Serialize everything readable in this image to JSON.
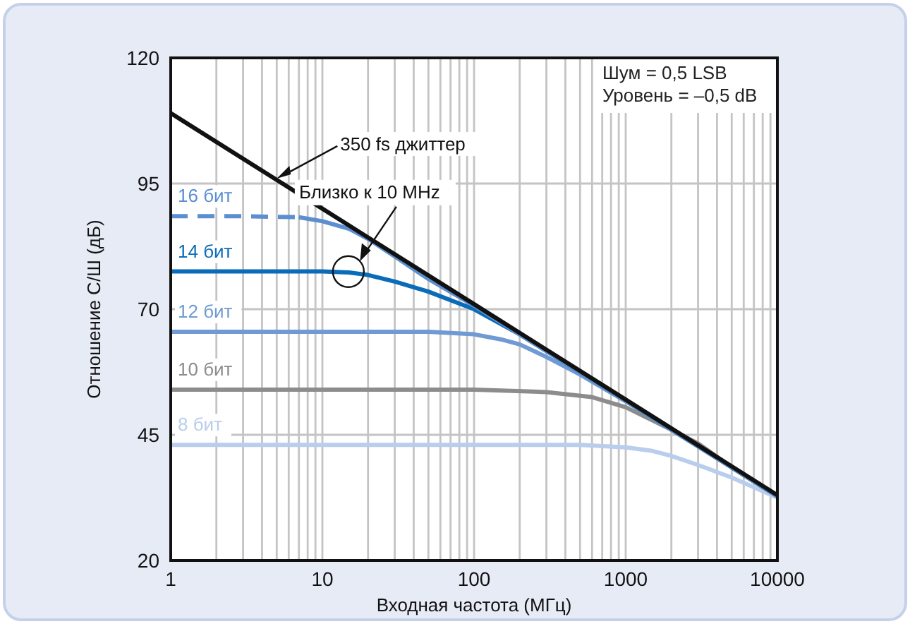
{
  "chart_data": {
    "type": "line",
    "xlabel": "Входная частота (МГц)",
    "ylabel": "Отношение С/Ш (дБ)",
    "log": "x",
    "grid": true,
    "line_style": "solid",
    "marker": "none",
    "xlim": [
      1,
      10000
    ],
    "ylim": [
      20,
      120
    ],
    "xticks": [
      1,
      {
        "value": 2,
        "label": null
      },
      {
        "value": 3,
        "label": null
      },
      {
        "value": 4,
        "label": null
      },
      {
        "value": 5,
        "label": null
      },
      {
        "value": 6,
        "label": null
      },
      {
        "value": 7,
        "label": null
      },
      {
        "value": 8,
        "label": null
      },
      {
        "value": 9,
        "label": null
      },
      10,
      {
        "value": 20,
        "label": null
      },
      {
        "value": 30,
        "label": null
      },
      {
        "value": 40,
        "label": null
      },
      {
        "value": 50,
        "label": null
      },
      {
        "value": 60,
        "label": null
      },
      {
        "value": 70,
        "label": null
      },
      {
        "value": 80,
        "label": null
      },
      {
        "value": 90,
        "label": null
      },
      100,
      {
        "value": 200,
        "label": null
      },
      {
        "value": 300,
        "label": null
      },
      {
        "value": 400,
        "label": null
      },
      {
        "value": 500,
        "label": null
      },
      {
        "value": 600,
        "label": null
      },
      {
        "value": 700,
        "label": null
      },
      {
        "value": 800,
        "label": null
      },
      {
        "value": 900,
        "label": null
      },
      1000,
      {
        "value": 2000,
        "label": null
      },
      {
        "value": 3000,
        "label": null
      },
      {
        "value": 4000,
        "label": null
      },
      {
        "value": 5000,
        "label": null
      },
      {
        "value": 6000,
        "label": null
      },
      {
        "value": 7000,
        "label": null
      },
      {
        "value": 8000,
        "label": null
      },
      {
        "value": 9000,
        "label": null
      },
      10000
    ],
    "yticks": [
      20,
      45,
      70,
      95,
      120
    ],
    "series": [
      {
        "name": "8 бит",
        "color": "#b9cdec",
        "x": [
          1,
          200,
          500,
          1000,
          1500,
          2000,
          3000,
          5000,
          10000
        ],
        "values": [
          43,
          43,
          43,
          42.5,
          41.8,
          40.8,
          39,
          36.5,
          32.5
        ]
      },
      {
        "name": "10 бит",
        "color": "#8c8c8c",
        "x": [
          1,
          100,
          300,
          600,
          1000,
          2000,
          3000,
          5000,
          10000
        ],
        "values": [
          54,
          54,
          53.5,
          52.5,
          50.5,
          46,
          43.3,
          38.5,
          32.8
        ]
      },
      {
        "name": "12 бит",
        "color": "#6f9ad3",
        "x": [
          1,
          50,
          100,
          150,
          200,
          300,
          500,
          1000,
          2000,
          5000,
          10000
        ],
        "values": [
          65.5,
          65.5,
          65,
          64,
          63,
          60.5,
          57,
          51.7,
          46,
          38.5,
          32.8
        ]
      },
      {
        "name": "14 бит",
        "color": "#0a6cb8",
        "x": [
          1,
          10,
          15,
          20,
          30,
          50,
          70,
          100,
          200,
          500,
          1000,
          10000
        ],
        "values": [
          77.5,
          77.5,
          77.3,
          76.8,
          75.5,
          73.5,
          71.8,
          70,
          65,
          57.5,
          51.8,
          32.8
        ]
      },
      {
        "name": "16 бит",
        "color": "#5b8fd0",
        "line_style": "dashed",
        "x": [
          1,
          3,
          7
        ],
        "values": [
          88.5,
          88.5,
          88.3
        ]
      },
      {
        "color": "#5b8fd0",
        "x": [
          7,
          10,
          15,
          20,
          30,
          50,
          100,
          200,
          500,
          1000,
          10000
        ],
        "values": [
          88.3,
          87.5,
          86,
          84,
          80.5,
          76,
          70.7,
          65,
          57.5,
          51.8,
          32.8
        ]
      },
      {
        "color": "#111111",
        "x": [
          1,
          10,
          100,
          1000,
          10000
        ],
        "values": [
          109,
          90,
          71,
          52,
          33
        ]
      }
    ],
    "annotations": [
      {
        "text": "350 fs джиттер",
        "x": 5,
        "y": 96
      },
      {
        "text": "Близко к 10 MHz",
        "x": 18,
        "y": 80
      },
      "Шум = 0,5 LSB",
      "Уровень = –0,5 dB"
    ]
  }
}
